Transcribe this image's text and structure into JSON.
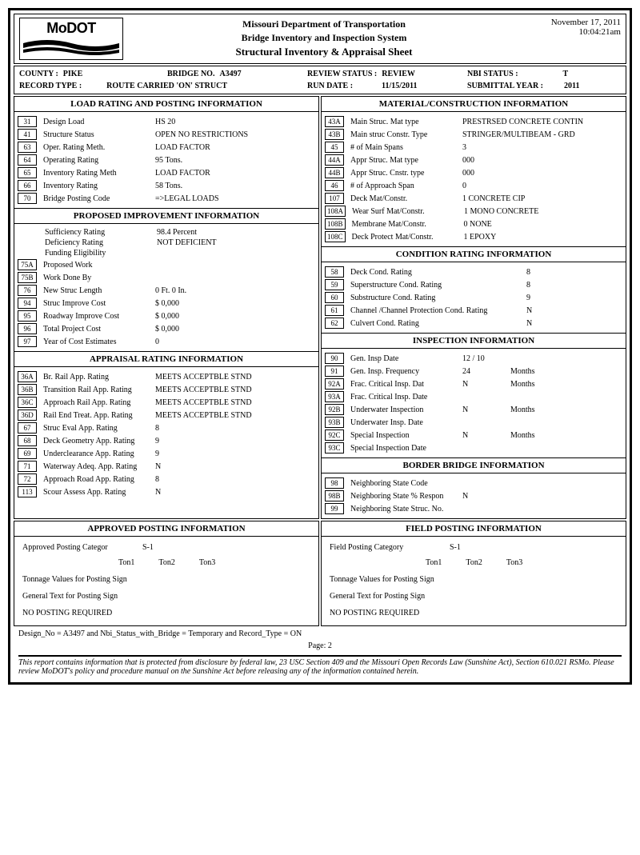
{
  "header": {
    "logo_text": "MoDOT",
    "dept": "Missouri Department of Transportation",
    "system": "Bridge Inventory and Inspection System",
    "title": "Structural Inventory & Appraisal Sheet",
    "date": "November 17, 2011",
    "time": "10:04:21am"
  },
  "info": {
    "county_lbl": "COUNTY :",
    "county": "PIKE",
    "bridge_no_lbl": "BRIDGE NO.",
    "bridge_no": "A3497",
    "review_status_lbl": "REVIEW STATUS :",
    "review_status": "REVIEW",
    "nbi_status_lbl": "NBI STATUS :",
    "nbi_status": "T",
    "record_type_lbl": "RECORD TYPE :",
    "record_type": "ROUTE CARRIED 'ON' STRUCT",
    "run_date_lbl": "RUN DATE :",
    "run_date": "11/15/2011",
    "submittal_year_lbl": "SUBMITTAL YEAR :",
    "submittal_year": "2011"
  },
  "sections": {
    "load_rating": {
      "title": "LOAD RATING AND POSTING INFORMATION",
      "rows": [
        {
          "code": "31",
          "label": "Design Load",
          "value": "HS 20"
        },
        {
          "code": "41",
          "label": "Structure Status",
          "value": "OPEN NO RESTRICTIONS"
        },
        {
          "code": "63",
          "label": "Oper. Rating Meth.",
          "value": "LOAD FACTOR"
        },
        {
          "code": "64",
          "label": "Operating Rating",
          "value": "95 Tons."
        },
        {
          "code": "65",
          "label": "Inventory Rating Meth",
          "value": "LOAD FACTOR"
        },
        {
          "code": "66",
          "label": "Inventory Rating",
          "value": "58 Tons."
        },
        {
          "code": "70",
          "label": "Bridge Posting Code",
          "value": "=>LEGAL LOADS"
        }
      ]
    },
    "proposed": {
      "title": "PROPOSED IMPROVEMENT INFORMATION",
      "rows": [
        {
          "code": "",
          "label": "Sufficiency Rating",
          "value": "98.4    Percent"
        },
        {
          "code": "",
          "label": "Deficiency Rating",
          "value": "NOT DEFICIENT"
        },
        {
          "code": "",
          "label": "Funding Eligibility",
          "value": ""
        },
        {
          "code": "75A",
          "label": "Proposed Work",
          "value": ""
        },
        {
          "code": "75B",
          "label": "Work Done By",
          "value": ""
        },
        {
          "code": "76",
          "label": "New Struc Length",
          "value": "0 Ft. 0 In."
        },
        {
          "code": "94",
          "label": "Struc Improve Cost",
          "value": "$ 0,000"
        },
        {
          "code": "95",
          "label": "Roadway Improve Cost",
          "value": "$ 0,000"
        },
        {
          "code": "96",
          "label": "Total Project Cost",
          "value": "$ 0,000"
        },
        {
          "code": "97",
          "label": "Year of Cost Estimates",
          "value": "0"
        }
      ]
    },
    "appraisal": {
      "title": "APPRAISAL RATING INFORMATION",
      "rows": [
        {
          "code": "36A",
          "label": "Br. Rail App. Rating",
          "value": "MEETS ACCEPTBLE STND"
        },
        {
          "code": "36B",
          "label": "Transition Rail App. Rating",
          "value": "MEETS ACCEPTBLE STND"
        },
        {
          "code": "36C",
          "label": "Approach Rail App. Rating",
          "value": "MEETS ACCEPTBLE STND"
        },
        {
          "code": "36D",
          "label": "Rail End Treat. App. Rating",
          "value": "MEETS ACCEPTBLE STND"
        },
        {
          "code": "67",
          "label": "Struc Eval App. Rating",
          "value": "8"
        },
        {
          "code": "68",
          "label": "Deck Geometry App. Rating",
          "value": "9"
        },
        {
          "code": "69",
          "label": "Underclearance App. Rating",
          "value": "9"
        },
        {
          "code": "71",
          "label": "Waterway Adeq. App. Rating",
          "value": "N"
        },
        {
          "code": "72",
          "label": "Approach Road App. Rating",
          "value": "8"
        },
        {
          "code": "113",
          "label": "Scour Assess  App. Rating",
          "value": "N"
        }
      ]
    },
    "material": {
      "title": "MATERIAL/CONSTRUCTION INFORMATION",
      "rows": [
        {
          "code": "43A",
          "label": "Main Struc. Mat type",
          "value": "PRESTRSED CONCRETE CONTIN"
        },
        {
          "code": "43B",
          "label": "Main struc Constr. Type",
          "value": "STRINGER/MULTIBEAM - GRD"
        },
        {
          "code": "45",
          "label": "# of Main Spans",
          "value": "3"
        },
        {
          "code": "44A",
          "label": "Appr Struc. Mat type",
          "value": "000"
        },
        {
          "code": "44B",
          "label": "Appr Struc. Cnstr. type",
          "value": "000"
        },
        {
          "code": "46",
          "label": "# of Approach Span",
          "value": "0"
        },
        {
          "code": "107",
          "label": "Deck Mat/Constr.",
          "value": "1 CONCRETE CIP"
        },
        {
          "code": "108A",
          "label": "Wear Surf Mat/Constr.",
          "value": "1 MONO CONCRETE"
        },
        {
          "code": "108B",
          "label": "Membrane Mat/Constr.",
          "value": "0 NONE"
        },
        {
          "code": "108C",
          "label": "Deck Protect Mat/Constr.",
          "value": "1 EPOXY"
        }
      ]
    },
    "condition": {
      "title": "CONDITION RATING INFORMATION",
      "rows": [
        {
          "code": "58",
          "label": "Deck Cond. Rating",
          "value": "8"
        },
        {
          "code": "59",
          "label": "Superstructure Cond. Rating",
          "value": "8"
        },
        {
          "code": "60",
          "label": "Substructure Cond. Rating",
          "value": "9"
        },
        {
          "code": "61",
          "label": "Channel /Channel Protection Cond. Rating",
          "value": "N"
        },
        {
          "code": "62",
          "label": "Culvert Cond. Rating",
          "value": "N"
        }
      ]
    },
    "inspection": {
      "title": "INSPECTION INFORMATION",
      "rows": [
        {
          "code": "90",
          "label": "Gen. Insp Date",
          "value": "12 / 10",
          "unit": ""
        },
        {
          "code": "91",
          "label": "Gen. Insp. Frequency",
          "value": "24",
          "unit": "Months"
        },
        {
          "code": "92A",
          "label": "Frac. Critical Insp. Dat",
          "value": "N",
          "unit": "Months"
        },
        {
          "code": "93A",
          "label": "Frac. Critical Insp. Date",
          "value": "",
          "unit": ""
        },
        {
          "code": "92B",
          "label": "Underwater Inspection",
          "value": "N",
          "unit": "Months"
        },
        {
          "code": "93B",
          "label": "Underwater Insp. Date",
          "value": "",
          "unit": ""
        },
        {
          "code": "92C",
          "label": "Special Inspection",
          "value": "N",
          "unit": "Months"
        },
        {
          "code": "93C",
          "label": "Special Inspection Date",
          "value": "",
          "unit": ""
        }
      ]
    },
    "border": {
      "title": "BORDER BRIDGE INFORMATION",
      "rows": [
        {
          "code": "98",
          "label": "Neighboring State Code",
          "value": ""
        },
        {
          "code": "98B",
          "label": "Neighboring State % Respon",
          "value": "N"
        },
        {
          "code": "99",
          "label": "Neighboring State Struc. No.",
          "value": ""
        }
      ]
    }
  },
  "posting": {
    "approved": {
      "title": "APPROVED POSTING INFORMATION",
      "category_lbl": "Approved Posting Categor",
      "category": "S-1",
      "ton1": "Ton1",
      "ton2": "Ton2",
      "ton3": "Ton3",
      "tonnage_lbl": "Tonnage Values for Posting Sign",
      "general_lbl": "General Text for Posting Sign",
      "no_posting": "NO POSTING REQUIRED"
    },
    "field": {
      "title": "FIELD POSTING INFORMATION",
      "category_lbl": "Field Posting Category",
      "category": "S-1",
      "ton1": "Ton1",
      "ton2": "Ton2",
      "ton3": "Ton3",
      "tonnage_lbl": "Tonnage Values for Posting Sign",
      "general_lbl": "General Text for Posting Sign",
      "no_posting": "NO POSTING REQUIRED"
    }
  },
  "footer": {
    "design_note": "Design_No = A3497 and Nbi_Status_with_Bridge = Temporary and Record_Type = ON",
    "page": "Page: 2",
    "disclaimer": "This report contains information that is protected from disclosure by federal law, 23 USC Section 409 and the Missouri Open Records Law (Sunshine Act), Section 610.021 RSMo.  Please review MoDOT's policy and procedure manual on the Sunshine Act before releasing any of the information contained herein."
  }
}
